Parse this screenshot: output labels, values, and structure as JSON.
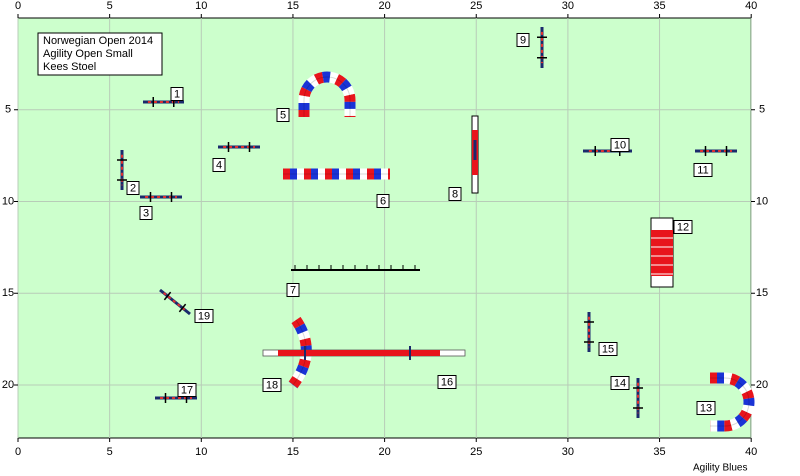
{
  "info_box": {
    "lines": [
      "Norwegian Open 2014",
      "Agility Open Small",
      "Kees Stoel"
    ]
  },
  "x_axis": {
    "ticks": [
      0,
      5,
      10,
      15,
      20,
      25,
      30,
      35,
      40
    ]
  },
  "y_axis": {
    "ticks": [
      5,
      10,
      15,
      20
    ]
  },
  "obstacles": [
    {
      "label": "1"
    },
    {
      "label": "2"
    },
    {
      "label": "3"
    },
    {
      "label": "4"
    },
    {
      "label": "5"
    },
    {
      "label": "6"
    },
    {
      "label": "7"
    },
    {
      "label": "8"
    },
    {
      "label": "9"
    },
    {
      "label": "10"
    },
    {
      "label": "11"
    },
    {
      "label": "12"
    },
    {
      "label": "13"
    },
    {
      "label": "14"
    },
    {
      "label": "15"
    },
    {
      "label": "16"
    },
    {
      "label": "17"
    },
    {
      "label": "18"
    },
    {
      "label": "19"
    }
  ],
  "footer": "Agility Blues"
}
